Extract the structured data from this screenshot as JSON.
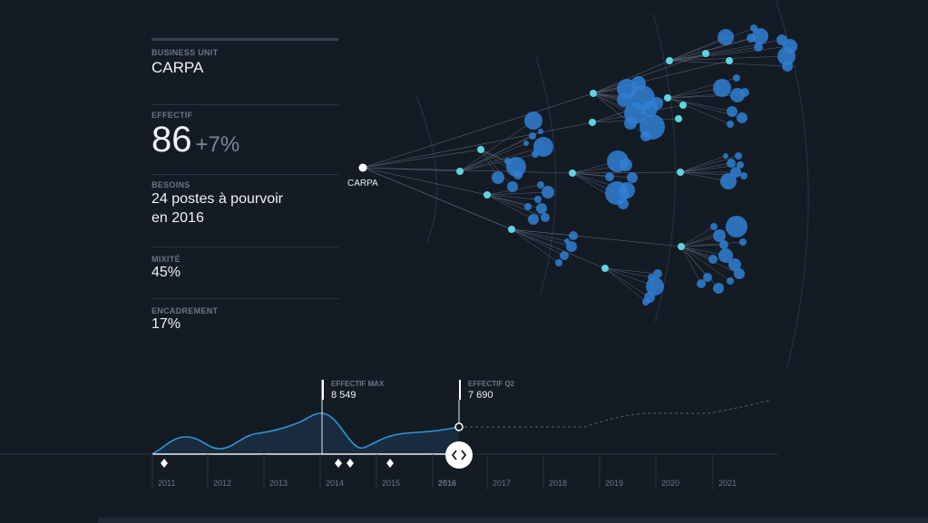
{
  "panel": {
    "unit_label": "BUSINESS UNIT",
    "unit_value": "CARPA",
    "effectif_label": "EFFECTIF",
    "effectif_value": "86",
    "effectif_change": "+7%",
    "besoins_label": "BESOINS",
    "besoins_line1": "24 postes à pourvoir",
    "besoins_line2": "en 2016",
    "mixite_label": "MIXITÉ",
    "mixite_value": "45%",
    "encadrement_label": "ENCADREMENT",
    "encadrement_value": "17%"
  },
  "tree": {
    "root_label": "CARPA"
  },
  "timeline": {
    "years": [
      "2011",
      "2012",
      "2013",
      "2014",
      "2015",
      "2016",
      "2017",
      "2018",
      "2019",
      "2020",
      "2021"
    ],
    "selected_year": "2016",
    "annotations": [
      {
        "label": "EFFECTIF MAX",
        "value": "8 549"
      },
      {
        "label": "EFFECTIF Q2",
        "value": "7 690"
      }
    ]
  },
  "colors": {
    "background": "#141b24",
    "node": "#5fd4e0",
    "bubble": "#2f7fd3",
    "curve": "#2f95d8"
  }
}
